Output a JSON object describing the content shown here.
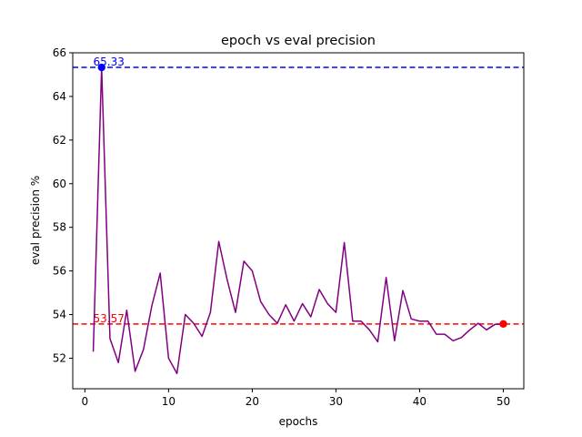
{
  "chart_data": {
    "type": "line",
    "title": "epoch vs eval precision",
    "xlabel": "epochs",
    "ylabel": "eval precision %",
    "xlim": [
      -1.45,
      52.45
    ],
    "ylim": [
      50.6,
      66.0
    ],
    "xticks": [
      0,
      10,
      20,
      30,
      40,
      50
    ],
    "yticks": [
      52,
      54,
      56,
      58,
      60,
      62,
      64,
      66
    ],
    "grid": false,
    "series": [
      {
        "color": "#800080",
        "x": [
          1,
          2,
          3,
          4,
          5,
          6,
          7,
          8,
          9,
          10,
          11,
          12,
          13,
          14,
          15,
          16,
          17,
          18,
          19,
          20,
          21,
          22,
          23,
          24,
          25,
          26,
          27,
          28,
          29,
          30,
          31,
          32,
          33,
          34,
          35,
          36,
          37,
          38,
          39,
          40,
          41,
          42,
          43,
          44,
          45,
          46,
          47,
          48,
          49,
          50
        ],
        "y": [
          52.3,
          65.33,
          52.9,
          51.8,
          54.2,
          51.4,
          52.4,
          54.4,
          55.9,
          52.0,
          51.3,
          54.0,
          53.6,
          53.0,
          54.1,
          57.35,
          55.6,
          54.1,
          56.45,
          56.0,
          54.6,
          54.0,
          53.6,
          54.45,
          53.7,
          54.5,
          53.9,
          55.15,
          54.5,
          54.1,
          57.3,
          53.7,
          53.7,
          53.3,
          52.75,
          55.7,
          52.8,
          55.1,
          53.8,
          53.7,
          53.7,
          53.1,
          53.1,
          52.8,
          52.95,
          53.3,
          53.6,
          53.3,
          53.55,
          53.57
        ]
      }
    ],
    "reference_lines": [
      {
        "value": 65.33,
        "label": "65.33",
        "color": "#0000ff"
      },
      {
        "value": 53.57,
        "label": "53.57",
        "color": "#ff0000"
      }
    ],
    "markers": [
      {
        "x": 2,
        "y": 65.33,
        "color": "#0000ff"
      },
      {
        "x": 50,
        "y": 53.57,
        "color": "#ff0000"
      }
    ]
  }
}
